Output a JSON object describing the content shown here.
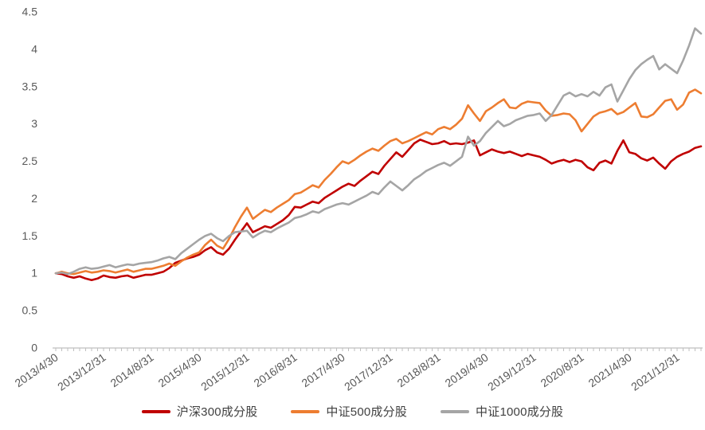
{
  "chart_data": {
    "type": "line",
    "title": "",
    "xlabel": "",
    "ylabel": "",
    "grid": false,
    "background": "#ffffff",
    "n_points": 109,
    "x_start": "2013/4/30",
    "x_frequency": "monthly",
    "x_label_every": 8,
    "x_tick_labels": [
      "2013/4/30",
      "2013/12/31",
      "2014/8/31",
      "2015/4/30",
      "2015/12/31",
      "2016/8/31",
      "2017/4/30",
      "2017/12/31",
      "2018/8/31",
      "2019/4/30",
      "2019/12/31",
      "2020/8/31",
      "2021/4/30",
      "2021/12/31"
    ],
    "y_axis": {
      "min": 0,
      "max": 4.5,
      "step": 0.5,
      "tick_labels": [
        "0",
        "0.5",
        "1",
        "1.5",
        "2",
        "2.5",
        "3",
        "3.5",
        "4",
        "4.5"
      ]
    },
    "legend_position": "bottom",
    "series": [
      {
        "name": "沪深300成分股",
        "color": "#C00000",
        "values": [
          1.0,
          0.99,
          0.96,
          0.94,
          0.96,
          0.93,
          0.91,
          0.93,
          0.97,
          0.95,
          0.94,
          0.96,
          0.97,
          0.94,
          0.96,
          0.98,
          0.98,
          1.0,
          1.02,
          1.07,
          1.14,
          1.17,
          1.2,
          1.22,
          1.25,
          1.31,
          1.35,
          1.28,
          1.25,
          1.33,
          1.45,
          1.56,
          1.67,
          1.55,
          1.59,
          1.63,
          1.61,
          1.66,
          1.71,
          1.78,
          1.89,
          1.88,
          1.92,
          1.96,
          1.94,
          2.01,
          2.06,
          2.11,
          2.16,
          2.2,
          2.17,
          2.24,
          2.3,
          2.36,
          2.33,
          2.44,
          2.53,
          2.62,
          2.56,
          2.65,
          2.74,
          2.79,
          2.76,
          2.73,
          2.74,
          2.77,
          2.73,
          2.74,
          2.73,
          2.75,
          2.78,
          2.58,
          2.62,
          2.66,
          2.63,
          2.61,
          2.63,
          2.6,
          2.57,
          2.6,
          2.58,
          2.56,
          2.52,
          2.47,
          2.5,
          2.52,
          2.49,
          2.52,
          2.5,
          2.42,
          2.38,
          2.48,
          2.51,
          2.47,
          2.64,
          2.78,
          2.62,
          2.6,
          2.54,
          2.51,
          2.55,
          2.47,
          2.4,
          2.5,
          2.56,
          2.6,
          2.63,
          2.68,
          2.7
        ]
      },
      {
        "name": "中证500成分股",
        "color": "#ED7D31",
        "values": [
          1.0,
          1.02,
          1.0,
          0.99,
          1.01,
          1.03,
          1.01,
          1.02,
          1.04,
          1.03,
          1.01,
          1.03,
          1.05,
          1.02,
          1.04,
          1.06,
          1.06,
          1.08,
          1.1,
          1.13,
          1.1,
          1.16,
          1.21,
          1.25,
          1.28,
          1.38,
          1.45,
          1.37,
          1.33,
          1.46,
          1.62,
          1.76,
          1.88,
          1.73,
          1.79,
          1.85,
          1.82,
          1.88,
          1.93,
          1.98,
          2.06,
          2.08,
          2.13,
          2.18,
          2.15,
          2.25,
          2.33,
          2.42,
          2.5,
          2.47,
          2.52,
          2.58,
          2.63,
          2.67,
          2.64,
          2.71,
          2.77,
          2.8,
          2.74,
          2.77,
          2.81,
          2.85,
          2.89,
          2.86,
          2.93,
          2.96,
          2.93,
          2.99,
          3.07,
          3.25,
          3.14,
          3.04,
          3.17,
          3.22,
          3.28,
          3.33,
          3.22,
          3.21,
          3.27,
          3.3,
          3.29,
          3.28,
          3.18,
          3.11,
          3.12,
          3.14,
          3.13,
          3.05,
          2.9,
          3.0,
          3.1,
          3.15,
          3.17,
          3.2,
          3.13,
          3.16,
          3.22,
          3.28,
          3.1,
          3.09,
          3.13,
          3.22,
          3.31,
          3.33,
          3.19,
          3.26,
          3.42,
          3.46,
          3.41
        ]
      },
      {
        "name": "中证1000成分股",
        "color": "#A5A5A5",
        "values": [
          1.0,
          1.01,
          0.99,
          1.02,
          1.06,
          1.08,
          1.06,
          1.07,
          1.09,
          1.11,
          1.08,
          1.1,
          1.12,
          1.11,
          1.13,
          1.14,
          1.15,
          1.17,
          1.2,
          1.22,
          1.19,
          1.27,
          1.33,
          1.39,
          1.45,
          1.5,
          1.53,
          1.47,
          1.43,
          1.5,
          1.55,
          1.56,
          1.57,
          1.48,
          1.53,
          1.57,
          1.55,
          1.6,
          1.64,
          1.68,
          1.74,
          1.76,
          1.79,
          1.83,
          1.81,
          1.86,
          1.89,
          1.92,
          1.94,
          1.92,
          1.96,
          2.0,
          2.04,
          2.09,
          2.06,
          2.15,
          2.23,
          2.17,
          2.11,
          2.18,
          2.26,
          2.31,
          2.37,
          2.41,
          2.45,
          2.48,
          2.44,
          2.5,
          2.56,
          2.83,
          2.71,
          2.77,
          2.88,
          2.96,
          3.04,
          2.97,
          3.0,
          3.05,
          3.08,
          3.11,
          3.12,
          3.14,
          3.04,
          3.12,
          3.25,
          3.38,
          3.42,
          3.37,
          3.4,
          3.37,
          3.43,
          3.38,
          3.49,
          3.53,
          3.3,
          3.45,
          3.6,
          3.72,
          3.8,
          3.86,
          3.91,
          3.73,
          3.8,
          3.74,
          3.68,
          3.85,
          4.05,
          4.28,
          4.21
        ]
      }
    ]
  },
  "style": {
    "axis_line_color": "#BFBFBF",
    "tick_color": "#BFBFBF",
    "axis_text_color": "#595959",
    "legend_text_color": "#404040",
    "line_width": 2.6
  }
}
